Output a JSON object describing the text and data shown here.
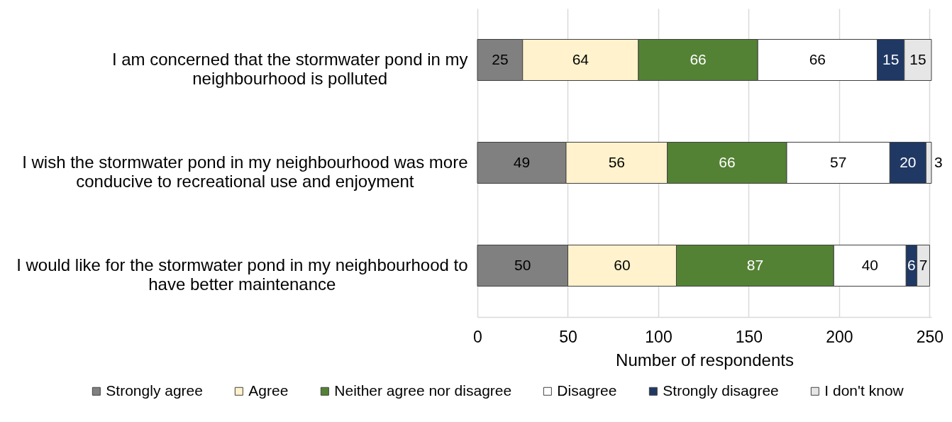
{
  "chart_data": {
    "type": "bar",
    "orientation": "horizontal",
    "stacked": true,
    "categories": [
      "I am concerned that the stormwater pond in my neighbourhood is polluted",
      "I wish the stormwater pond in my neighbourhood was more conducive to recreational use and enjoyment",
      "I would like for the stormwater pond in my neighbourhood to have better maintenance"
    ],
    "series": [
      {
        "name": "Strongly agree",
        "color": "#808080",
        "values": [
          25,
          49,
          50
        ]
      },
      {
        "name": "Agree",
        "color": "#fff2cc",
        "values": [
          64,
          56,
          60
        ]
      },
      {
        "name": "Neither agree nor disagree",
        "color": "#548235",
        "values": [
          66,
          66,
          87
        ]
      },
      {
        "name": "Disagree",
        "color": "#ffffff",
        "values": [
          66,
          57,
          40
        ]
      },
      {
        "name": "Strongly disagree",
        "color": "#203864",
        "values": [
          15,
          20,
          6
        ]
      },
      {
        "name": "I don't know",
        "color": "#e7e6e6",
        "values": [
          15,
          3,
          7
        ]
      }
    ],
    "xlabel": "Number of respondents",
    "xlim": [
      0,
      251
    ],
    "xticks": [
      0,
      50,
      100,
      150,
      200,
      250
    ],
    "grid": "x",
    "legend": "bottom",
    "data_labels": true
  }
}
